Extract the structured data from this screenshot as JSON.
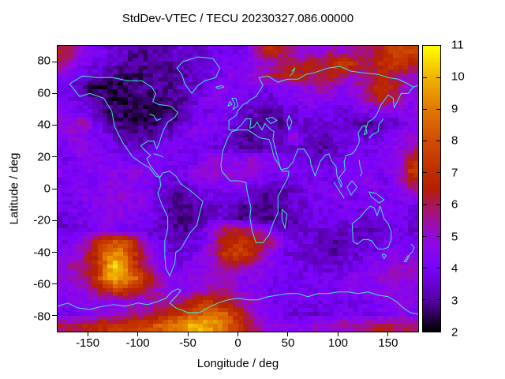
{
  "title": "StdDev-VTEC / TECU 20230327.086.00000",
  "colors": {
    "coastline": "#40e8d8",
    "plot_border": "#000000",
    "background": "#ffffff",
    "text": "#000000"
  },
  "chart_data": {
    "type": "heatmap",
    "title": "StdDev-VTEC / TECU 20230327.086.00000",
    "xlabel": "Longitude / deg",
    "ylabel": "Latitude / deg",
    "xlim": [
      -180,
      180
    ],
    "ylim": [
      -90,
      90
    ],
    "xticks": [
      -150,
      -100,
      -50,
      0,
      50,
      100,
      150
    ],
    "yticks": [
      80,
      60,
      40,
      20,
      0,
      -20,
      -40,
      -60,
      -80
    ],
    "grid_lines": false,
    "legend_position": "right-colorbar",
    "colorbar": {
      "min": 2,
      "max": 11,
      "ticks": [
        2,
        3,
        4,
        5,
        6,
        7,
        8,
        9,
        10,
        11
      ],
      "palette_name": "gnuplot-black-blue-red-yellow",
      "palette_stops": [
        {
          "v": 2,
          "c": "#000000"
        },
        {
          "v": 3,
          "c": "#5500a4"
        },
        {
          "v": 4,
          "c": "#7803fb"
        },
        {
          "v": 5,
          "c": "#9309dd"
        },
        {
          "v": 6,
          "c": "#aa1657"
        },
        {
          "v": 6.5,
          "c": "#b42000"
        },
        {
          "v": 7,
          "c": "#be2c00"
        },
        {
          "v": 8,
          "c": "#d04c00"
        },
        {
          "v": 9,
          "c": "#e17800"
        },
        {
          "v": 10,
          "c": "#f0b300"
        },
        {
          "v": 11,
          "c": "#ffff00"
        }
      ]
    },
    "grid": {
      "cols": 36,
      "rows": 24,
      "lon_start": -180,
      "lon_step": 10,
      "lat_start": 90,
      "lat_step": -7.5,
      "units": "TECU",
      "values": [
        [
          6.5,
          5.5,
          4.5,
          4,
          4,
          3.5,
          3.5,
          3,
          3,
          3,
          3,
          3.5,
          3.5,
          3.5,
          3.5,
          4,
          4,
          4,
          4,
          5,
          6.5,
          7,
          6,
          5.5,
          5,
          5,
          5,
          5.5,
          5,
          5.5,
          5.5,
          6,
          6.5,
          7.5,
          8,
          7.5
        ],
        [
          6,
          5,
          4.5,
          4,
          3.5,
          3.5,
          3,
          3,
          3,
          3,
          3,
          3,
          3.5,
          3.5,
          3.5,
          3.5,
          4,
          4,
          4.5,
          4.5,
          5,
          5,
          5.5,
          6,
          6,
          6.5,
          6,
          7,
          7.5,
          7,
          6,
          6,
          7,
          7.5,
          7.5,
          6.5
        ],
        [
          4.5,
          4,
          3.5,
          3.5,
          3,
          3,
          2.5,
          2.5,
          2.5,
          3,
          3,
          3,
          3,
          3.5,
          3.5,
          4,
          4,
          4.5,
          4.5,
          5,
          5.5,
          6,
          6.5,
          7,
          6.5,
          6,
          6,
          6.5,
          6,
          5.5,
          5.5,
          6,
          6.5,
          6,
          5.5,
          5
        ],
        [
          4,
          3.5,
          3,
          2.5,
          2.5,
          2.5,
          2.5,
          3,
          3,
          3,
          3,
          3,
          3.5,
          3.5,
          3.5,
          4,
          4.5,
          4,
          4.5,
          4.5,
          4,
          4,
          4.5,
          4.5,
          5,
          5,
          5.5,
          5,
          4.5,
          5,
          5.5,
          6.5,
          7,
          6.5,
          5.5,
          4.5
        ],
        [
          4,
          4,
          3.5,
          3,
          3,
          2.5,
          2.5,
          2.5,
          2.5,
          2.5,
          2.5,
          3,
          3,
          3.5,
          4,
          4.5,
          4.5,
          4,
          4,
          3.5,
          3.5,
          3.5,
          4,
          4,
          4.5,
          4.5,
          4.5,
          4.5,
          4,
          4.5,
          5,
          6,
          6.5,
          6,
          5,
          4.5
        ],
        [
          4.5,
          4,
          4,
          3.5,
          3,
          2.5,
          2.5,
          2.5,
          2.5,
          2.5,
          2.5,
          2.5,
          3,
          3.5,
          4,
          4,
          4,
          4,
          3.5,
          3.5,
          3,
          3,
          3.5,
          3.5,
          4,
          4,
          4,
          4,
          3.5,
          4,
          4.5,
          4,
          4.5,
          4.5,
          4.5,
          4.5
        ],
        [
          5,
          4.5,
          6,
          4,
          3.5,
          3,
          2.5,
          2.5,
          2.5,
          2.5,
          3,
          3,
          3.5,
          4,
          4.5,
          4.5,
          4,
          3.5,
          3.5,
          3,
          3,
          3,
          3,
          3.5,
          3.5,
          3.5,
          3.5,
          3.5,
          3.5,
          3,
          3,
          3,
          3,
          3.5,
          4,
          4.5
        ],
        [
          4.5,
          5,
          4.5,
          4,
          4,
          3.5,
          3,
          3,
          3,
          3,
          3.5,
          3.5,
          4,
          4.5,
          4.5,
          4,
          4,
          3.5,
          3,
          3,
          3.5,
          3,
          3.5,
          5.5,
          3.5,
          3.5,
          3,
          3.5,
          3.5,
          4,
          3.5,
          3.5,
          4,
          4.5,
          4.5,
          5
        ],
        [
          4,
          4.5,
          5,
          4.5,
          4,
          4,
          3.5,
          3.5,
          3.5,
          4,
          4,
          4,
          4,
          4,
          4,
          3.5,
          3.5,
          3.5,
          3,
          3,
          3,
          3.5,
          3.5,
          3.5,
          3.5,
          3,
          3,
          3.5,
          3.5,
          4,
          4,
          4,
          4.5,
          4.5,
          5,
          5.5
        ],
        [
          4,
          4,
          4.5,
          4.5,
          4.5,
          4,
          4,
          4,
          4,
          4.5,
          4.5,
          4,
          4,
          4,
          4,
          5.5,
          4.5,
          4.5,
          4.5,
          5.5,
          4.5,
          4.5,
          4,
          4,
          3.5,
          3.5,
          3.5,
          3.5,
          4,
          4,
          4,
          4,
          4.5,
          4.5,
          5,
          6.5
        ],
        [
          4.5,
          4,
          4,
          4.5,
          4.5,
          4.5,
          4.5,
          5,
          4.5,
          4.5,
          4,
          4,
          4,
          4.5,
          5,
          5,
          5,
          5,
          5,
          5,
          4.5,
          4.5,
          4.5,
          4,
          4,
          4,
          4,
          4,
          4.5,
          4.5,
          4.5,
          4,
          4,
          4.5,
          5.5,
          7.5
        ],
        [
          4,
          4.5,
          4.5,
          4,
          4.5,
          5,
          4.5,
          4.5,
          4.5,
          4,
          4,
          3.5,
          3.5,
          4,
          4.5,
          4.5,
          4.5,
          4.5,
          4.5,
          4,
          4,
          3.5,
          3.5,
          3.5,
          4,
          4,
          4,
          4,
          4,
          4,
          4.5,
          4.5,
          4,
          4,
          5.5,
          6
        ],
        [
          4,
          4,
          4.5,
          4.5,
          4.5,
          4.5,
          5,
          4.5,
          4.5,
          4,
          3.5,
          3,
          3,
          3.5,
          3.5,
          4,
          4,
          4,
          4,
          3.5,
          3,
          3,
          3,
          3.5,
          3.5,
          4,
          4,
          4.5,
          4.5,
          4,
          4,
          4,
          4,
          4.5,
          4.5,
          5
        ],
        [
          4,
          4,
          4,
          4.5,
          4.5,
          5,
          4.5,
          4.5,
          4.5,
          4,
          3.5,
          3,
          3,
          3,
          3.5,
          3.5,
          3.5,
          3.5,
          3,
          3,
          3,
          3,
          3,
          3.5,
          3.5,
          4,
          4,
          4,
          4,
          4,
          4,
          4,
          4.5,
          4,
          4,
          4
        ],
        [
          3.5,
          4,
          4,
          4,
          4.5,
          4.5,
          4.5,
          4.5,
          4,
          4,
          3.5,
          3,
          2.5,
          3,
          3,
          3.5,
          3.5,
          3,
          3,
          3,
          2.5,
          3,
          3,
          3,
          3.5,
          3.5,
          4,
          4,
          4,
          4,
          3.5,
          3.5,
          4,
          4,
          4,
          3.5
        ],
        [
          3.5,
          3.5,
          4,
          4,
          4.5,
          4.5,
          4,
          4,
          4,
          3.5,
          3.5,
          3,
          3,
          3,
          3.5,
          5,
          6,
          6.5,
          6,
          5.5,
          5,
          4,
          3.5,
          3.5,
          3.5,
          3.5,
          3.5,
          3.5,
          3.5,
          3.5,
          3,
          3,
          3.5,
          4,
          4,
          3.5
        ],
        [
          4,
          4,
          5,
          6,
          7.5,
          8,
          8,
          7,
          5.5,
          4,
          3.5,
          3.5,
          3.5,
          3.5,
          4,
          5,
          6.5,
          7,
          7,
          6.5,
          6,
          5.5,
          4.5,
          4,
          3.5,
          3.5,
          3,
          3,
          3,
          3.5,
          3.5,
          3.5,
          4,
          4,
          4,
          4
        ],
        [
          4.5,
          4.5,
          5.5,
          6.5,
          8.5,
          9.5,
          9,
          7.5,
          6,
          4.5,
          4,
          3.5,
          3.5,
          4,
          4.5,
          5.5,
          7,
          7.5,
          7.5,
          6.5,
          5.5,
          4.5,
          4,
          3.5,
          3.5,
          3.5,
          3.5,
          3,
          3.5,
          3.5,
          4,
          4,
          4,
          4.5,
          4.5,
          4.5
        ],
        [
          5,
          5.5,
          6,
          6,
          8,
          10.5,
          10,
          7.5,
          6,
          5,
          4.5,
          4,
          4,
          4.5,
          4.5,
          5,
          5.5,
          6,
          5.5,
          5,
          4.5,
          4.5,
          4,
          4,
          4,
          3.5,
          3.5,
          3.5,
          3.5,
          4,
          4,
          4.5,
          4.5,
          5,
          5,
          5
        ],
        [
          5,
          5,
          5.5,
          6.5,
          8.5,
          10,
          9.5,
          9,
          7.5,
          6,
          5,
          4.5,
          4.5,
          4.5,
          5,
          5,
          5,
          5,
          4.5,
          4.5,
          4.5,
          4,
          4,
          4,
          4,
          4,
          4,
          4,
          4,
          4.5,
          4.5,
          4.5,
          5,
          5,
          5,
          5
        ],
        [
          4.5,
          4.5,
          5,
          5.5,
          6.5,
          7.5,
          7.5,
          7,
          6,
          5.5,
          5,
          4.5,
          4.5,
          5,
          5,
          5.5,
          5.5,
          5,
          4.5,
          4.5,
          4,
          4,
          4,
          4,
          4,
          4,
          4,
          4,
          4.5,
          4.5,
          4.5,
          4.5,
          4.5,
          5,
          4.5,
          4.5
        ],
        [
          4.5,
          4.5,
          4.5,
          5,
          4.5,
          4.5,
          5,
          5,
          5,
          5.5,
          5.5,
          5.5,
          6,
          6.5,
          7,
          7,
          6.5,
          6,
          5.5,
          5,
          4.5,
          4,
          4,
          4,
          4,
          4,
          4,
          4,
          4,
          4,
          4,
          4,
          4.5,
          4.5,
          4.5,
          4.5
        ],
        [
          4,
          4,
          4.5,
          4.5,
          5,
          5,
          5,
          5.5,
          5.5,
          6,
          6.5,
          7,
          7.5,
          8,
          8.5,
          9,
          8.5,
          7.5,
          6,
          5,
          4.5,
          4,
          4,
          3.5,
          3.5,
          3.5,
          3.5,
          4,
          4,
          4,
          4,
          4,
          4,
          4.5,
          4.5,
          4
        ],
        [
          6,
          6,
          6.5,
          6.5,
          7,
          7,
          7.5,
          7.5,
          7.5,
          8,
          8.5,
          9,
          9.5,
          10,
          10,
          9.5,
          9,
          8,
          7,
          6,
          5,
          4.5,
          4.5,
          4.5,
          4.5,
          5,
          5,
          5,
          5.5,
          5.5,
          5.5,
          6,
          6,
          6,
          6,
          5.5
        ]
      ]
    }
  }
}
